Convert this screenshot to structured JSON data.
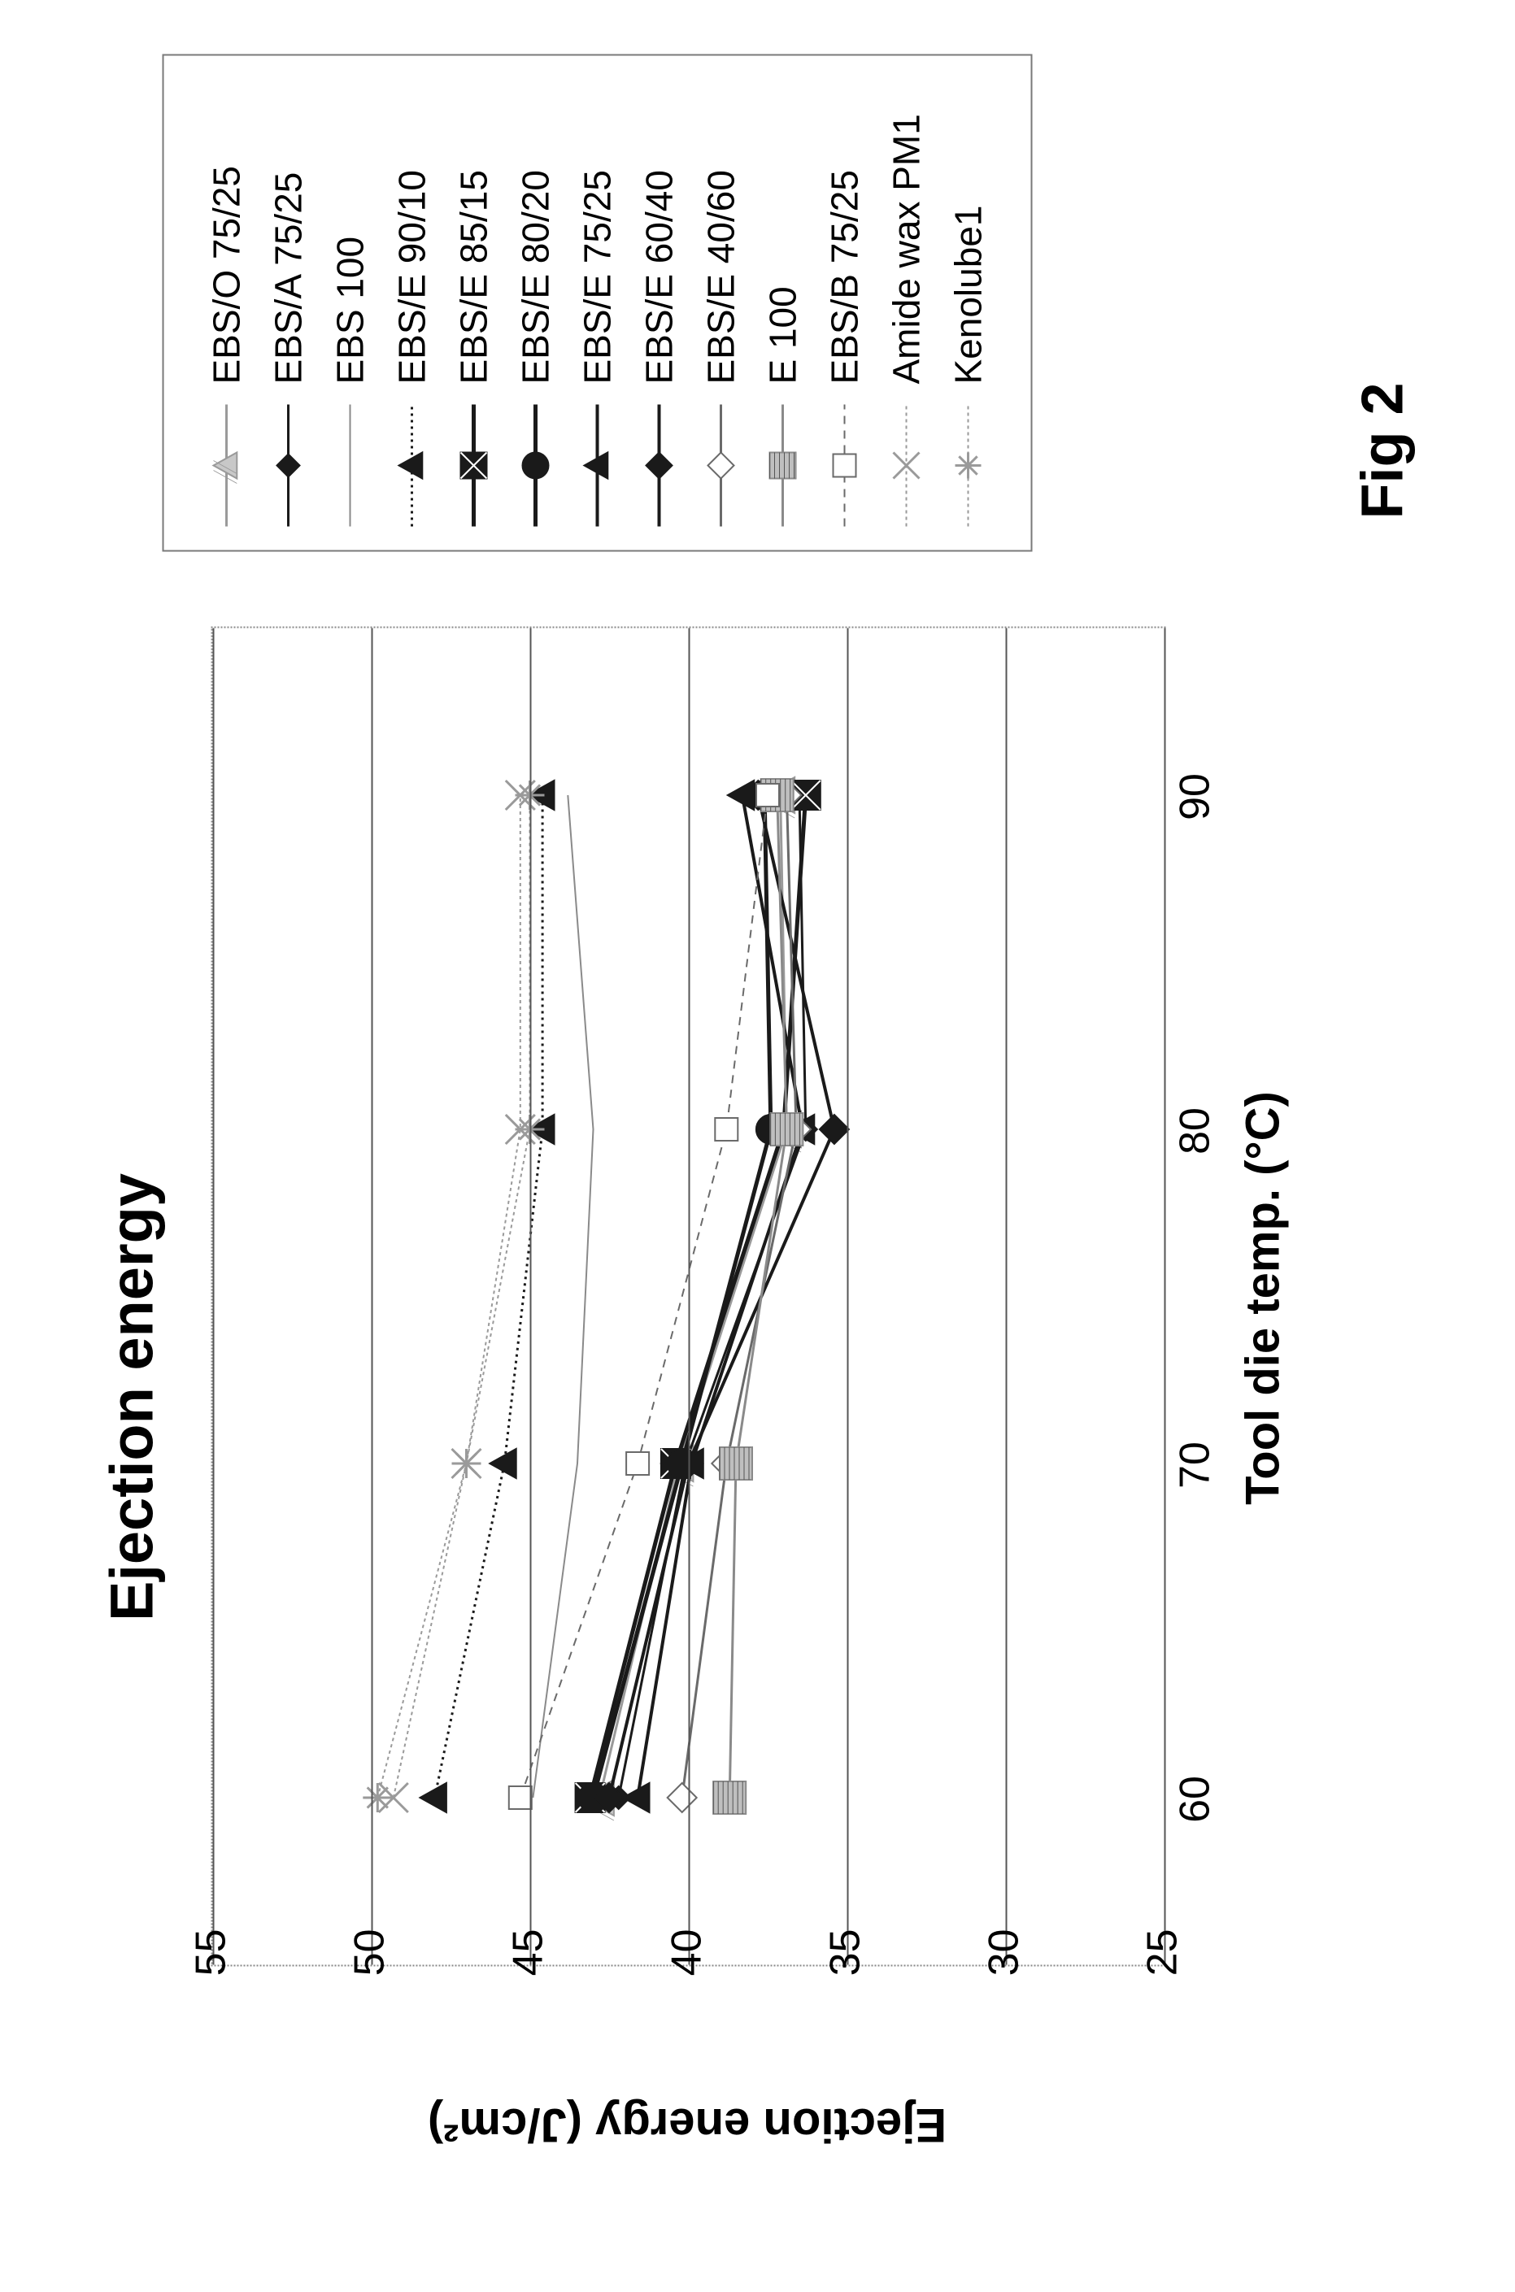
{
  "figure": {
    "caption": "Fig 2"
  },
  "chart": {
    "type": "line",
    "title": "Ejection energy",
    "title_fontsize": 74,
    "xlabel": "Tool die temp. (°C)",
    "ylabel": "Ejection energy (J/cm²)",
    "label_fontsize": 58,
    "tick_fontsize": 52,
    "background_color": "#ffffff",
    "grid_color": "#555555",
    "border_color": "#888888",
    "border_style": "dotted",
    "xlim": [
      55,
      95
    ],
    "ylim": [
      25,
      55
    ],
    "xticks": [
      60,
      70,
      80,
      90
    ],
    "yticks": [
      25,
      30,
      35,
      40,
      45,
      50,
      55
    ],
    "x_values": [
      60,
      70,
      80,
      90
    ],
    "series": [
      {
        "label": "EBS/O 75/25",
        "color": "#9a9a9a",
        "line_width": 3,
        "dash": "",
        "marker": "tri-hatch",
        "marker_size": 22,
        "marker_fill": "#c8c8c8",
        "y": [
          42.8,
          40.3,
          36.9,
          37.1
        ]
      },
      {
        "label": "EBS/A 75/25",
        "color": "#1a1a1a",
        "line_width": 3,
        "dash": "",
        "marker": "diamond",
        "marker_size": 14,
        "marker_fill": "#1a1a1a",
        "y": [
          42.2,
          40.1,
          36.3,
          36.5
        ]
      },
      {
        "label": "EBS 100",
        "color": "#8a8a8a",
        "line_width": 2,
        "dash": "",
        "marker": "none",
        "marker_size": 0,
        "marker_fill": "#8a8a8a",
        "y": [
          44.9,
          43.5,
          43.0,
          43.8
        ]
      },
      {
        "label": "EBS/E 90/10",
        "color": "#1a1a1a",
        "line_width": 3,
        "dash": "3,5",
        "marker": "triangle",
        "marker_size": 18,
        "marker_fill": "#1a1a1a",
        "y": [
          48.0,
          45.8,
          44.6,
          44.6
        ]
      },
      {
        "label": "EBS/E 85/15",
        "color": "#1a1a1a",
        "line_width": 5,
        "dash": "",
        "marker": "square-x",
        "marker_size": 18,
        "marker_fill": "#1a1a1a",
        "y": [
          43.1,
          40.4,
          37.0,
          36.3
        ]
      },
      {
        "label": "EBS/E 80/20",
        "color": "#1a1a1a",
        "line_width": 5,
        "dash": "",
        "marker": "circle",
        "marker_size": 18,
        "marker_fill": "#1a1a1a",
        "y": [
          43.0,
          40.2,
          37.4,
          37.6
        ]
      },
      {
        "label": "EBS/E 75/25",
        "color": "#1a1a1a",
        "line_width": 4,
        "dash": "",
        "marker": "triangle",
        "marker_size": 18,
        "marker_fill": "#1a1a1a",
        "y": [
          41.6,
          39.9,
          36.4,
          38.3
        ]
      },
      {
        "label": "EBS/E 60/40",
        "color": "#1a1a1a",
        "line_width": 4,
        "dash": "",
        "marker": "diamond",
        "marker_size": 18,
        "marker_fill": "#1a1a1a",
        "y": [
          42.5,
          40.0,
          35.4,
          37.8
        ]
      },
      {
        "label": "EBS/E 40/60",
        "color": "#6a6a6a",
        "line_width": 3,
        "dash": "",
        "marker": "diamond",
        "marker_size": 18,
        "marker_fill": "#ffffff",
        "y": [
          40.2,
          38.8,
          36.6,
          36.9
        ]
      },
      {
        "label": "E 100",
        "color": "#8a8a8a",
        "line_width": 3,
        "dash": "",
        "marker": "square-hatch",
        "marker_size": 20,
        "marker_fill": "#bfbfbf",
        "y": [
          38.7,
          38.5,
          36.9,
          37.2
        ]
      },
      {
        "label": "EBS/B 75/25",
        "color": "#6a6a6a",
        "line_width": 2,
        "dash": "10,8",
        "marker": "square",
        "marker_size": 14,
        "marker_fill": "#ffffff",
        "y": [
          45.3,
          41.6,
          38.8,
          37.5
        ]
      },
      {
        "label": "Amide wax PM1",
        "color": "#9a9a9a",
        "line_width": 2,
        "dash": "4,4",
        "marker": "x",
        "marker_size": 18,
        "marker_fill": "#6a6a6a",
        "y": [
          49.3,
          47.0,
          45.3,
          45.3
        ]
      },
      {
        "label": "Kenolube1",
        "color": "#9a9a9a",
        "line_width": 2,
        "dash": "4,4",
        "marker": "asterisk",
        "marker_size": 18,
        "marker_fill": "#6a6a6a",
        "y": [
          49.8,
          47.0,
          45.0,
          45.0
        ]
      }
    ]
  }
}
